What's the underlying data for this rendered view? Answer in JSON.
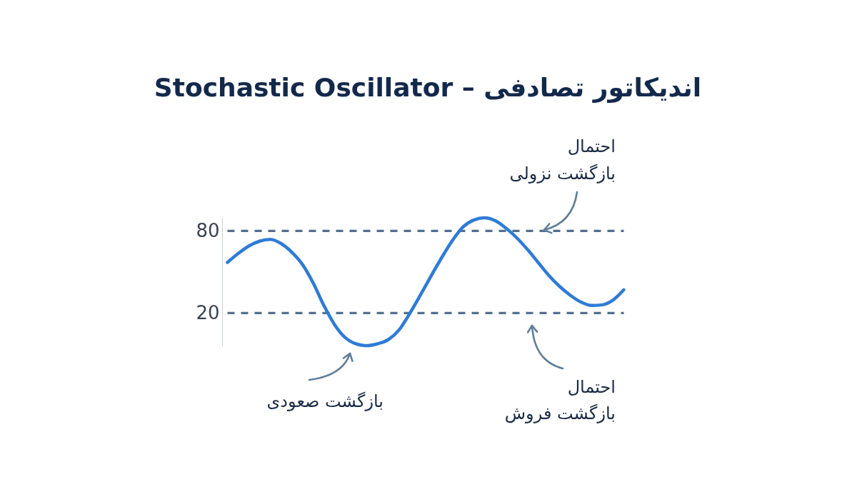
{
  "chart_data": {
    "type": "line",
    "title": "اندیکاتور تصادفی – Stochastic Oscillator",
    "categories": [
      null,
      null,
      null,
      null,
      null,
      null,
      null,
      null,
      null,
      null,
      null,
      null,
      null,
      null,
      null,
      null,
      null,
      null,
      null,
      null,
      null,
      null,
      null,
      null,
      null,
      null,
      null,
      null,
      null,
      null,
      null,
      null,
      null,
      null,
      null,
      null,
      null,
      null
    ],
    "series": [
      {
        "color": "#2f7bd6",
        "values": [
          57,
          63.5,
          69,
          72.5,
          73.8,
          70.8,
          64.5,
          55.5,
          42,
          25.5,
          11.5,
          2,
          -2.5,
          -3.8,
          -2.5,
          0.5,
          7.5,
          19.5,
          33,
          47,
          60.5,
          73,
          83,
          88,
          89.6,
          87.5,
          82,
          75,
          66.5,
          57,
          47.5,
          39.5,
          33,
          28,
          25.5,
          26,
          29.5,
          37
        ]
      }
    ],
    "ylim": [
      -3.8,
      89.6
    ],
    "yticks": [
      20,
      80
    ],
    "tick_labels": "y",
    "ref_lines": [
      {
        "axis": "y",
        "value": 80,
        "color": "#52708d",
        "line_style": "dashed"
      },
      {
        "axis": "y",
        "value": 20,
        "color": "#52708d",
        "line_style": "dashed"
      }
    ],
    "annotations": [
      "احتمال بازگشت نزولی",
      "بازگشت صعودی",
      "احتمال بازگشت فروش"
    ]
  }
}
